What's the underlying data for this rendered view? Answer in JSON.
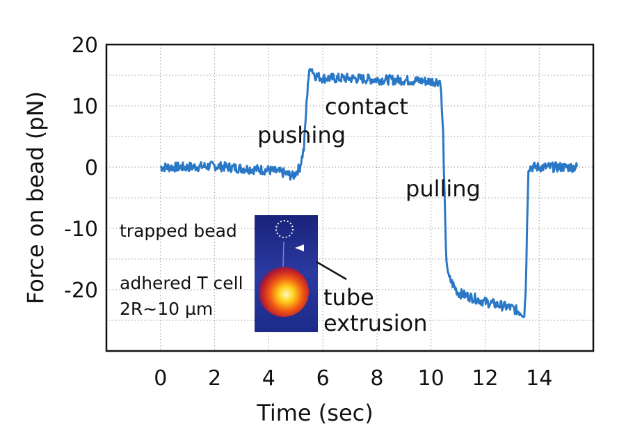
{
  "chart_data": {
    "type": "line",
    "xlabel": "Time (sec)",
    "ylabel": "Force on bead (pN)",
    "xlim": [
      -2,
      16
    ],
    "ylim": [
      -30,
      20
    ],
    "x_ticks": [
      "0",
      "2",
      "4",
      "6",
      "8",
      "10",
      "12",
      "14"
    ],
    "x_tick_values": [
      0,
      2,
      4,
      6,
      8,
      10,
      12,
      14
    ],
    "y_ticks": [
      "20",
      "10",
      "0",
      "-10",
      "-20"
    ],
    "y_tick_values": [
      20,
      10,
      0,
      -10,
      -20
    ],
    "grid": true,
    "series": [
      {
        "x": [
          0,
          1,
          2,
          3,
          4,
          4.6,
          4.9,
          5.15,
          5.3,
          5.45,
          5.55,
          5.7,
          6,
          7,
          8,
          9,
          10,
          10.2,
          10.35,
          10.45,
          10.55,
          10.65,
          11,
          12,
          13,
          13.45,
          13.5,
          13.6,
          14,
          15,
          15.4
        ],
        "y": [
          0,
          0,
          0.2,
          -0.2,
          -0.5,
          -1,
          -1.5,
          0,
          3,
          14,
          16.5,
          15,
          14.5,
          14.5,
          14.3,
          14.2,
          14,
          14,
          14,
          5,
          -14,
          -18,
          -20.5,
          -22,
          -23,
          -24,
          -20,
          0,
          0,
          0,
          0
        ]
      }
    ],
    "annotations": {
      "contact": "contact",
      "pushing": "pushing",
      "pulling": "pulling",
      "trapped_bead": "trapped bead",
      "adhered": "adhered T cell",
      "radius": "2R~10 µm",
      "tube": "tube",
      "extrusion": "extrusion"
    },
    "colors": {
      "trace": "#2a78c5",
      "frame": "#111111"
    }
  }
}
